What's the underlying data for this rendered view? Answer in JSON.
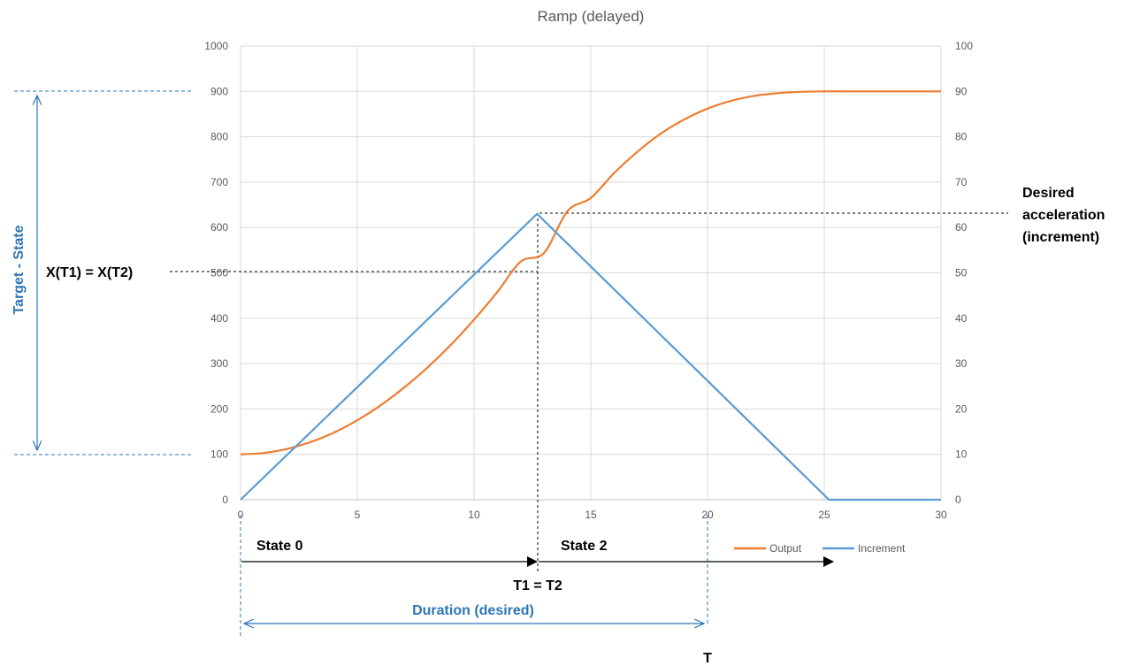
{
  "chart_data": {
    "type": "line",
    "title": "Ramp (delayed)",
    "x_ticks": [
      "0",
      "5",
      "10",
      "15",
      "20",
      "25",
      "30"
    ],
    "y_left_ticks": [
      "0",
      "100",
      "200",
      "300",
      "400",
      "500",
      "600",
      "700",
      "800",
      "900",
      "1000"
    ],
    "y_right_ticks": [
      "0",
      "10",
      "20",
      "30",
      "40",
      "50",
      "60",
      "70",
      "80",
      "90",
      "100"
    ],
    "xlim": [
      0,
      30
    ],
    "ylim_left": [
      0,
      1000
    ],
    "ylim_right": [
      0,
      100
    ],
    "grid": true,
    "legend_placement": "bottom-right",
    "series": [
      {
        "name": "Output",
        "axis": "left",
        "color": "#ED7D31",
        "points": [
          [
            0,
            100
          ],
          [
            1,
            103
          ],
          [
            2,
            112
          ],
          [
            3,
            127
          ],
          [
            4,
            148
          ],
          [
            5,
            175
          ],
          [
            6,
            208
          ],
          [
            7,
            247
          ],
          [
            8,
            291
          ],
          [
            9,
            341
          ],
          [
            10,
            397
          ],
          [
            11,
            458
          ],
          [
            12,
            525
          ],
          [
            12.7,
            503
          ],
          [
            13,
            544
          ],
          [
            14,
            636
          ],
          [
            15,
            665
          ],
          [
            16,
            720
          ],
          [
            17,
            767
          ],
          [
            18,
            807
          ],
          [
            19,
            838
          ],
          [
            20,
            862
          ],
          [
            21,
            879
          ],
          [
            22,
            890
          ],
          [
            23,
            896
          ],
          [
            24,
            899
          ],
          [
            25,
            900
          ],
          [
            26,
            900
          ],
          [
            27,
            900
          ],
          [
            28,
            900
          ],
          [
            29,
            900
          ],
          [
            30,
            900
          ]
        ]
      },
      {
        "name": "Increment",
        "axis": "right",
        "color": "#5B9BD5",
        "points": [
          [
            0,
            0
          ],
          [
            12.7,
            63
          ],
          [
            25.2,
            0
          ],
          [
            30,
            0
          ]
        ]
      }
    ],
    "annotations": {
      "target_state": "Target - State",
      "x_equal": "X(T1) = X(T2)",
      "desired_line1": "Desired",
      "desired_line2": "acceleration",
      "desired_line3": "(increment)",
      "state0": "State 0",
      "state2": "State 2",
      "t1t2": "T1 = T2",
      "duration": "Duration (desired)",
      "t_label": "T"
    }
  }
}
